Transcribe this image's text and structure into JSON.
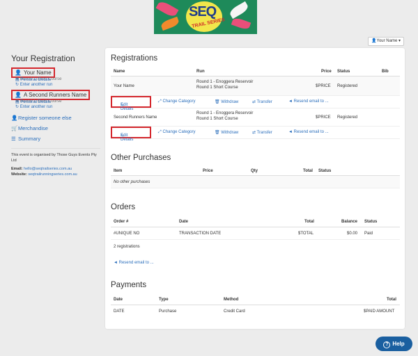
{
  "banner": {
    "logo_text": "SEQ",
    "logo_sub": "TRAIL SERIES"
  },
  "header": {
    "user_menu": "Your Name"
  },
  "sidebar": {
    "title": "Your Registration",
    "entrants": [
      {
        "name": "Your Name",
        "details": "Personal Details",
        "race": "Round 1 Short Course",
        "enter": "Enter another run"
      },
      {
        "name": "A Second Runners Name",
        "details": "Personal Details",
        "race": "Round 1 Short Course",
        "enter": "Enter another run"
      }
    ],
    "nav": [
      {
        "label": "Register someone else"
      },
      {
        "label": "Merchandise"
      },
      {
        "label": "Summary"
      }
    ],
    "organiser": "This event is organised by Those Guys Events Pty Ltd",
    "email_label": "Email:",
    "email": "hello@seqtrailseries.com.au",
    "website_label": "Website:",
    "website": "seqtrailrunningseries.com.au"
  },
  "registrations": {
    "title": "Registrations",
    "headers": {
      "name": "Name",
      "run": "Run",
      "price": "Price",
      "status": "Status",
      "bib": "Bib"
    },
    "rows": [
      {
        "name": "Your Name",
        "run1": "Round 1 - Enoggera Reservoir",
        "run2": "Round 1 Short Course",
        "price": "$PRICE",
        "status": "Registered"
      },
      {
        "name": "Second Runners Name",
        "run1": "Round 1 - Enoggera Reservoir",
        "run2": "Round 1 Short Course",
        "price": "$PRICE",
        "status": "Registered"
      }
    ],
    "actions": {
      "edit": "Edit Details",
      "change": "Change Category",
      "withdraw": "Withdraw",
      "transfer": "Transfer",
      "resend": "Resend email to ..."
    }
  },
  "other_purchases": {
    "title": "Other Purchases",
    "headers": {
      "item": "Item",
      "price": "Price",
      "qty": "Qty",
      "total": "Total",
      "status": "Status"
    },
    "empty": "No other purchases"
  },
  "orders": {
    "title": "Orders",
    "headers": {
      "order": "Order #",
      "date": "Date",
      "total": "Total",
      "balance": "Balance",
      "status": "Status"
    },
    "row": {
      "order": "#UNIQUE NO",
      "date": "TRANSACTION DATE",
      "total": "$TOTAL",
      "balance": "$0.00",
      "status": "Paid"
    },
    "count": "2 registrations",
    "resend": "Resend email to ..."
  },
  "payments": {
    "title": "Payments",
    "headers": {
      "date": "Date",
      "type": "Type",
      "method": "Method",
      "total": "Total"
    },
    "row": {
      "date": "DATE",
      "type": "Purchase",
      "method": "Credit Card",
      "total": "$PAID AMOUNT"
    }
  },
  "help": {
    "label": "Help"
  },
  "colors": {
    "link": "#2a6ebb",
    "highlight": "#d4262c",
    "help_bg": "#1a5fa0"
  }
}
